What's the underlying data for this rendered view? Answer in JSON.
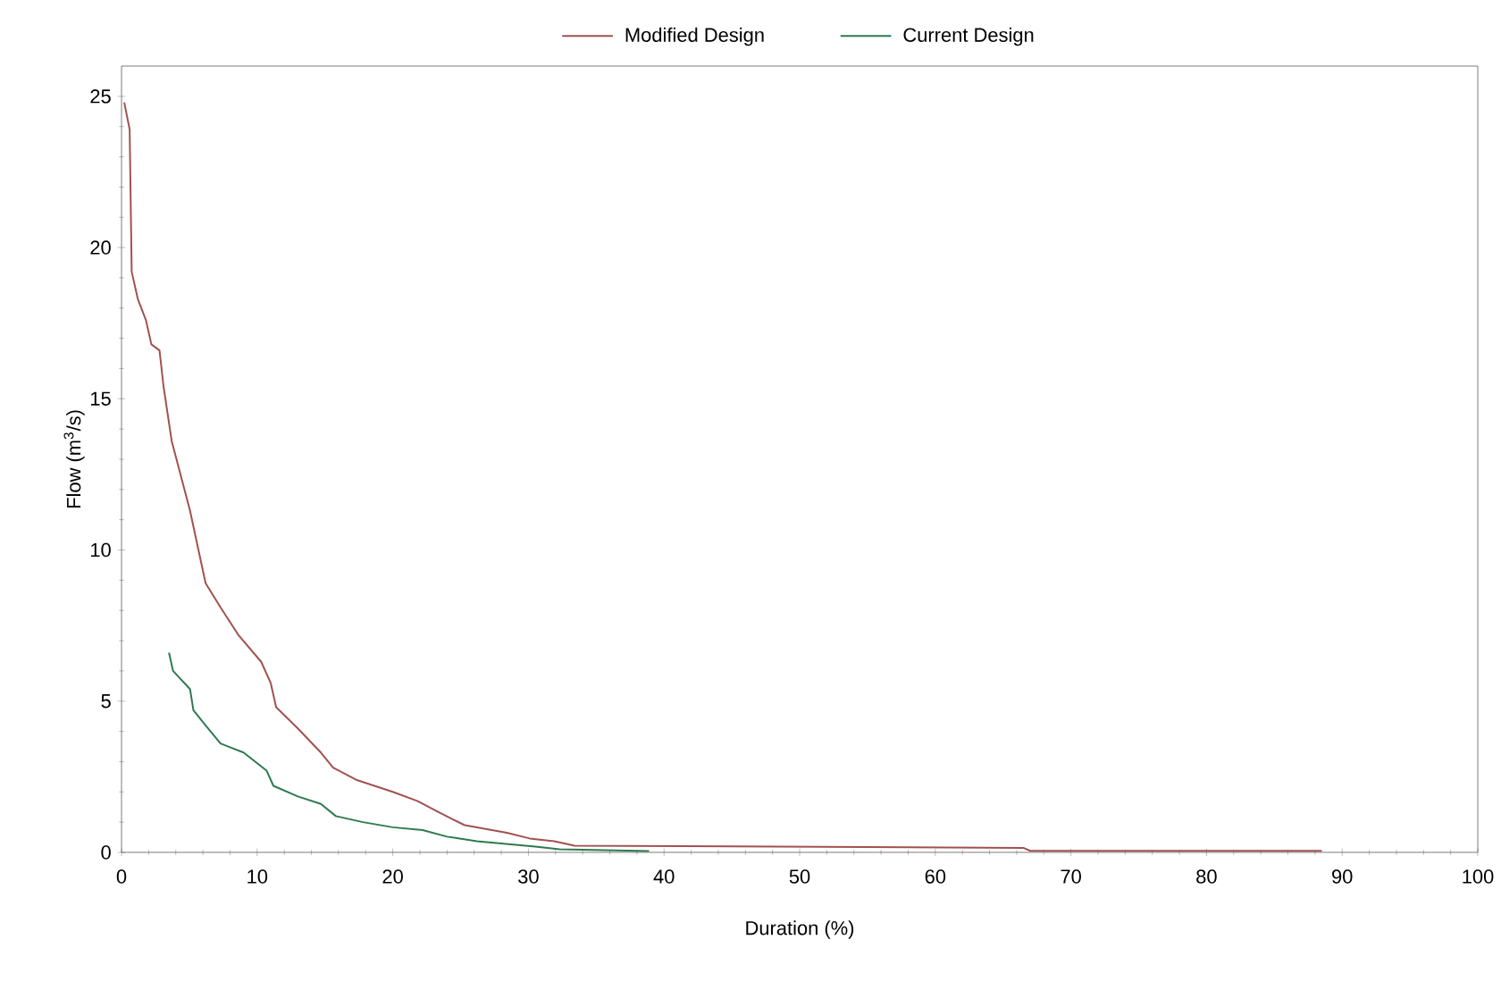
{
  "chart_data": {
    "type": "line",
    "xlabel": "Duration (%)",
    "ylabel": "Flow (m$^{3}$/s)",
    "xlim": [
      0,
      100
    ],
    "ylim": [
      0,
      26
    ],
    "xticks": [
      0,
      10,
      20,
      30,
      40,
      50,
      60,
      70,
      80,
      90,
      100
    ],
    "yticks": [
      0,
      5,
      10,
      15,
      20,
      25
    ],
    "legend": "top",
    "grid": false,
    "marker": "none",
    "line_style": "solid",
    "series": [
      {
        "name": "Modified Design",
        "color": "#a0524f",
        "x": [
          0.2,
          0.6,
          0.75,
          1.2,
          1.8,
          2.2,
          2.8,
          3.1,
          3.7,
          5.05,
          6.2,
          7.3,
          8.6,
          10.3,
          11,
          11.4,
          13,
          14.7,
          15.6,
          17.3,
          20,
          21.8,
          23.5,
          25.3,
          28.4,
          30.1,
          31.9,
          33.4,
          45,
          66.5,
          67,
          88.5
        ],
        "values": [
          24.8,
          23.9,
          19.2,
          18.3,
          17.6,
          16.8,
          16.6,
          15.4,
          13.6,
          11.3,
          8.9,
          8.1,
          7.2,
          6.3,
          5.6,
          4.8,
          4.1,
          3.3,
          2.8,
          2.4,
          2.0,
          1.7,
          1.3,
          0.9,
          0.65,
          0.46,
          0.37,
          0.22,
          0.2,
          0.15,
          0.05,
          0.05
        ]
      },
      {
        "name": "Current Design",
        "color": "#2e7a4f",
        "x": [
          3.5,
          3.8,
          5.05,
          5.3,
          6.2,
          7.3,
          9,
          10.7,
          11.2,
          13,
          14.7,
          15.8,
          17.8,
          20,
          22.2,
          24,
          26.2,
          30.5,
          32.3,
          38.9
        ],
        "values": [
          6.6,
          6.0,
          5.4,
          4.7,
          4.2,
          3.6,
          3.3,
          2.7,
          2.2,
          1.85,
          1.6,
          1.2,
          1.0,
          0.83,
          0.74,
          0.52,
          0.37,
          0.19,
          0.1,
          0.04
        ]
      }
    ]
  }
}
